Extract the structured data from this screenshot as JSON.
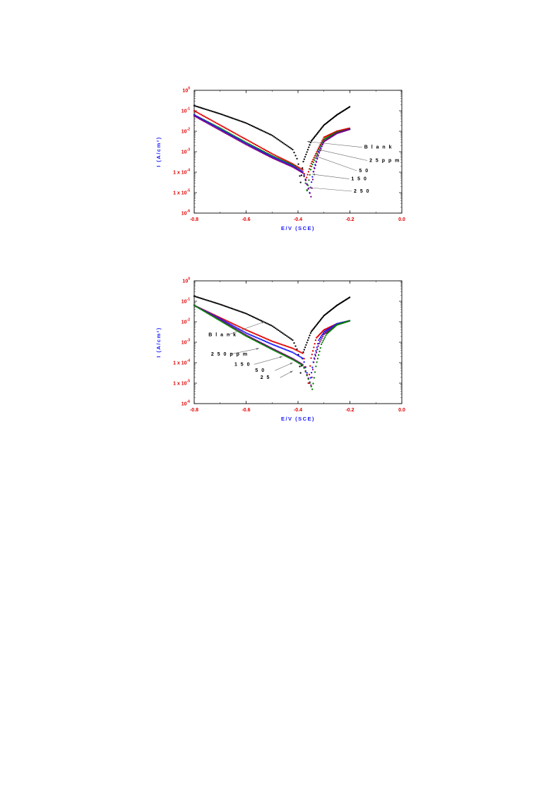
{
  "chart_data": [
    {
      "type": "scatter",
      "xlabel": "E/V (SCE)",
      "ylabel": "I (A/cm²)",
      "xlim": [
        -0.8,
        0.0
      ],
      "ylim": [
        -6,
        0
      ],
      "yscale": "log",
      "xticks": [
        "-0.8",
        "-0.6",
        "-0.4",
        "-0.2",
        "0.0"
      ],
      "yticks": [
        {
          "value": 0,
          "base": "10",
          "exp": "0"
        },
        {
          "value": -1,
          "base": "10",
          "exp": "-1"
        },
        {
          "value": -2,
          "base": "10",
          "exp": "-2"
        },
        {
          "value": -3,
          "base": "10",
          "exp": "-3"
        },
        {
          "value": -4,
          "base": "1 x 10",
          "exp": "-4"
        },
        {
          "value": -5,
          "base": "1 x 10",
          "exp": "-5"
        },
        {
          "value": -6,
          "base": "10",
          "exp": "-6"
        }
      ],
      "grid": false,
      "series": [
        {
          "name": "Blank",
          "color": "#000000",
          "ecorr": -0.39,
          "left": [
            [
              -0.8,
              -0.75
            ],
            [
              -0.7,
              -1.15
            ],
            [
              -0.6,
              -1.6
            ],
            [
              -0.5,
              -2.2
            ],
            [
              -0.42,
              -2.9
            ],
            [
              -0.4,
              -3.45
            ],
            [
              -0.39,
              -4.5
            ]
          ],
          "right": [
            [
              -0.39,
              -4.5
            ],
            [
              -0.38,
              -3.5
            ],
            [
              -0.35,
              -2.5
            ],
            [
              -0.3,
              -1.7
            ],
            [
              -0.25,
              -1.2
            ],
            [
              -0.2,
              -0.8
            ]
          ]
        },
        {
          "name": "25ppm",
          "color": "#e00000",
          "ecorr": -0.37,
          "left": [
            [
              -0.8,
              -1.0
            ],
            [
              -0.7,
              -1.7
            ],
            [
              -0.6,
              -2.4
            ],
            [
              -0.5,
              -3.1
            ],
            [
              -0.42,
              -3.6
            ],
            [
              -0.38,
              -3.9
            ],
            [
              -0.37,
              -4.4
            ]
          ],
          "right": [
            [
              -0.37,
              -4.4
            ],
            [
              -0.35,
              -3.6
            ],
            [
              -0.32,
              -2.8
            ],
            [
              -0.3,
              -2.3
            ],
            [
              -0.25,
              -2.0
            ],
            [
              -0.2,
              -1.85
            ]
          ]
        },
        {
          "name": "50",
          "color": "#008000",
          "ecorr": -0.365,
          "left": [
            [
              -0.8,
              -1.2
            ],
            [
              -0.7,
              -1.85
            ],
            [
              -0.6,
              -2.55
            ],
            [
              -0.5,
              -3.2
            ],
            [
              -0.42,
              -3.65
            ],
            [
              -0.38,
              -4.0
            ],
            [
              -0.365,
              -4.9
            ]
          ],
          "right": [
            [
              -0.365,
              -4.9
            ],
            [
              -0.35,
              -3.8
            ],
            [
              -0.32,
              -2.9
            ],
            [
              -0.3,
              -2.4
            ],
            [
              -0.25,
              -2.05
            ],
            [
              -0.2,
              -1.9
            ]
          ]
        },
        {
          "name": "150",
          "color": "#1a1aff",
          "ecorr": -0.355,
          "left": [
            [
              -0.8,
              -1.2
            ],
            [
              -0.7,
              -1.9
            ],
            [
              -0.6,
              -2.6
            ],
            [
              -0.5,
              -3.25
            ],
            [
              -0.42,
              -3.7
            ],
            [
              -0.38,
              -4.0
            ],
            [
              -0.355,
              -5.0
            ]
          ],
          "right": [
            [
              -0.355,
              -5.0
            ],
            [
              -0.34,
              -3.9
            ],
            [
              -0.32,
              -3.0
            ],
            [
              -0.3,
              -2.5
            ],
            [
              -0.25,
              -2.1
            ],
            [
              -0.2,
              -1.9
            ]
          ]
        },
        {
          "name": "250",
          "color": "#800080",
          "ecorr": -0.35,
          "left": [
            [
              -0.8,
              -1.25
            ],
            [
              -0.7,
              -1.95
            ],
            [
              -0.6,
              -2.65
            ],
            [
              -0.5,
              -3.3
            ],
            [
              -0.42,
              -3.75
            ],
            [
              -0.38,
              -4.05
            ],
            [
              -0.35,
              -5.2
            ]
          ],
          "right": [
            [
              -0.35,
              -5.2
            ],
            [
              -0.34,
              -4.0
            ],
            [
              -0.32,
              -3.1
            ],
            [
              -0.3,
              -2.5
            ],
            [
              -0.25,
              -2.1
            ],
            [
              -0.2,
              -1.9
            ]
          ]
        }
      ],
      "annotations": [
        {
          "text": "B l a n k",
          "x": -0.145,
          "y": -2.85,
          "ax": -0.365,
          "ay": -2.5
        },
        {
          "text": "2 5 p p m",
          "x": -0.125,
          "y": -3.5,
          "ax": -0.32,
          "ay": -2.9
        },
        {
          "text": "5 0",
          "x": -0.165,
          "y": -4.0,
          "ax": -0.335,
          "ay": -3.2
        },
        {
          "text": "1 5 0",
          "x": -0.195,
          "y": -4.4,
          "ax": -0.345,
          "ay": -4.1
        },
        {
          "text": "2 5 0",
          "x": -0.185,
          "y": -5.0,
          "ax": -0.36,
          "ay": -4.75
        }
      ]
    },
    {
      "type": "scatter",
      "xlabel": "E/V (SCE)",
      "ylabel": "I (A/cm²)",
      "xlim": [
        -0.8,
        0.0
      ],
      "ylim": [
        -6,
        0
      ],
      "yscale": "log",
      "xticks": [
        "-0.8",
        "-0.6",
        "-0.4",
        "-0.2",
        "0.0"
      ],
      "yticks": [
        {
          "value": 0,
          "base": "10",
          "exp": "0"
        },
        {
          "value": -1,
          "base": "10",
          "exp": "-1"
        },
        {
          "value": -2,
          "base": "10",
          "exp": "-2"
        },
        {
          "value": -3,
          "base": "10",
          "exp": "-3"
        },
        {
          "value": -4,
          "base": "1 x 10",
          "exp": "-4"
        },
        {
          "value": -5,
          "base": "1 x 10",
          "exp": "-5"
        },
        {
          "value": -6,
          "base": "10",
          "exp": "-6"
        }
      ],
      "grid": false,
      "series": [
        {
          "name": "Blank",
          "color": "#000000",
          "ecorr": -0.39,
          "left": [
            [
              -0.8,
              -0.75
            ],
            [
              -0.7,
              -1.15
            ],
            [
              -0.6,
              -1.6
            ],
            [
              -0.5,
              -2.2
            ],
            [
              -0.42,
              -2.9
            ],
            [
              -0.4,
              -3.45
            ],
            [
              -0.39,
              -4.5
            ]
          ],
          "right": [
            [
              -0.39,
              -4.5
            ],
            [
              -0.38,
              -3.5
            ],
            [
              -0.35,
              -2.5
            ],
            [
              -0.3,
              -1.7
            ],
            [
              -0.25,
              -1.2
            ],
            [
              -0.2,
              -0.8
            ]
          ]
        },
        {
          "name": "250ppm",
          "color": "#e00000",
          "ecorr": -0.36,
          "left": [
            [
              -0.8,
              -1.2
            ],
            [
              -0.7,
              -1.8
            ],
            [
              -0.6,
              -2.4
            ],
            [
              -0.5,
              -2.95
            ],
            [
              -0.42,
              -3.3
            ],
            [
              -0.38,
              -3.55
            ],
            [
              -0.36,
              -5.0
            ]
          ],
          "right": [
            [
              -0.36,
              -5.0
            ],
            [
              -0.35,
              -3.8
            ],
            [
              -0.33,
              -2.8
            ],
            [
              -0.3,
              -2.4
            ],
            [
              -0.25,
              -2.1
            ],
            [
              -0.2,
              -1.95
            ]
          ]
        },
        {
          "name": "150",
          "color": "#1a1aff",
          "ecorr": -0.355,
          "left": [
            [
              -0.8,
              -1.2
            ],
            [
              -0.7,
              -1.85
            ],
            [
              -0.6,
              -2.55
            ],
            [
              -0.5,
              -3.1
            ],
            [
              -0.42,
              -3.5
            ],
            [
              -0.38,
              -3.8
            ],
            [
              -0.355,
              -5.0
            ]
          ],
          "right": [
            [
              -0.355,
              -5.0
            ],
            [
              -0.34,
              -3.9
            ],
            [
              -0.32,
              -2.9
            ],
            [
              -0.3,
              -2.5
            ],
            [
              -0.25,
              -2.1
            ],
            [
              -0.2,
              -1.95
            ]
          ]
        },
        {
          "name": "50",
          "color": "#800080",
          "ecorr": -0.35,
          "left": [
            [
              -0.8,
              -1.2
            ],
            [
              -0.7,
              -1.9
            ],
            [
              -0.6,
              -2.65
            ],
            [
              -0.5,
              -3.3
            ],
            [
              -0.42,
              -3.8
            ],
            [
              -0.38,
              -4.1
            ],
            [
              -0.35,
              -5.1
            ]
          ],
          "right": [
            [
              -0.35,
              -5.1
            ],
            [
              -0.34,
              -4.0
            ],
            [
              -0.32,
              -3.1
            ],
            [
              -0.3,
              -2.6
            ],
            [
              -0.25,
              -2.15
            ],
            [
              -0.2,
              -1.95
            ]
          ]
        },
        {
          "name": "25",
          "color": "#008000",
          "ecorr": -0.345,
          "left": [
            [
              -0.8,
              -1.2
            ],
            [
              -0.7,
              -1.95
            ],
            [
              -0.6,
              -2.7
            ],
            [
              -0.5,
              -3.35
            ],
            [
              -0.42,
              -3.85
            ],
            [
              -0.38,
              -4.15
            ],
            [
              -0.345,
              -5.3
            ]
          ],
          "right": [
            [
              -0.345,
              -5.3
            ],
            [
              -0.33,
              -4.1
            ],
            [
              -0.31,
              -3.1
            ],
            [
              -0.29,
              -2.6
            ],
            [
              -0.25,
              -2.15
            ],
            [
              -0.2,
              -1.95
            ]
          ]
        }
      ],
      "annotations": [
        {
          "text": "B l a n k",
          "x": -0.745,
          "y": -2.7,
          "ax": -0.53,
          "ay": -2.0
        },
        {
          "text": "2 5 0 p p m",
          "x": -0.735,
          "y": -3.65,
          "ax": -0.55,
          "ay": -3.3
        },
        {
          "text": "1 5 0",
          "x": -0.645,
          "y": -4.15,
          "ax": -0.46,
          "ay": -3.7
        },
        {
          "text": "5 0",
          "x": -0.565,
          "y": -4.45,
          "ax": -0.42,
          "ay": -4.0
        },
        {
          "text": "2 5",
          "x": -0.545,
          "y": -4.8,
          "ax": -0.42,
          "ay": -4.4
        }
      ]
    }
  ]
}
